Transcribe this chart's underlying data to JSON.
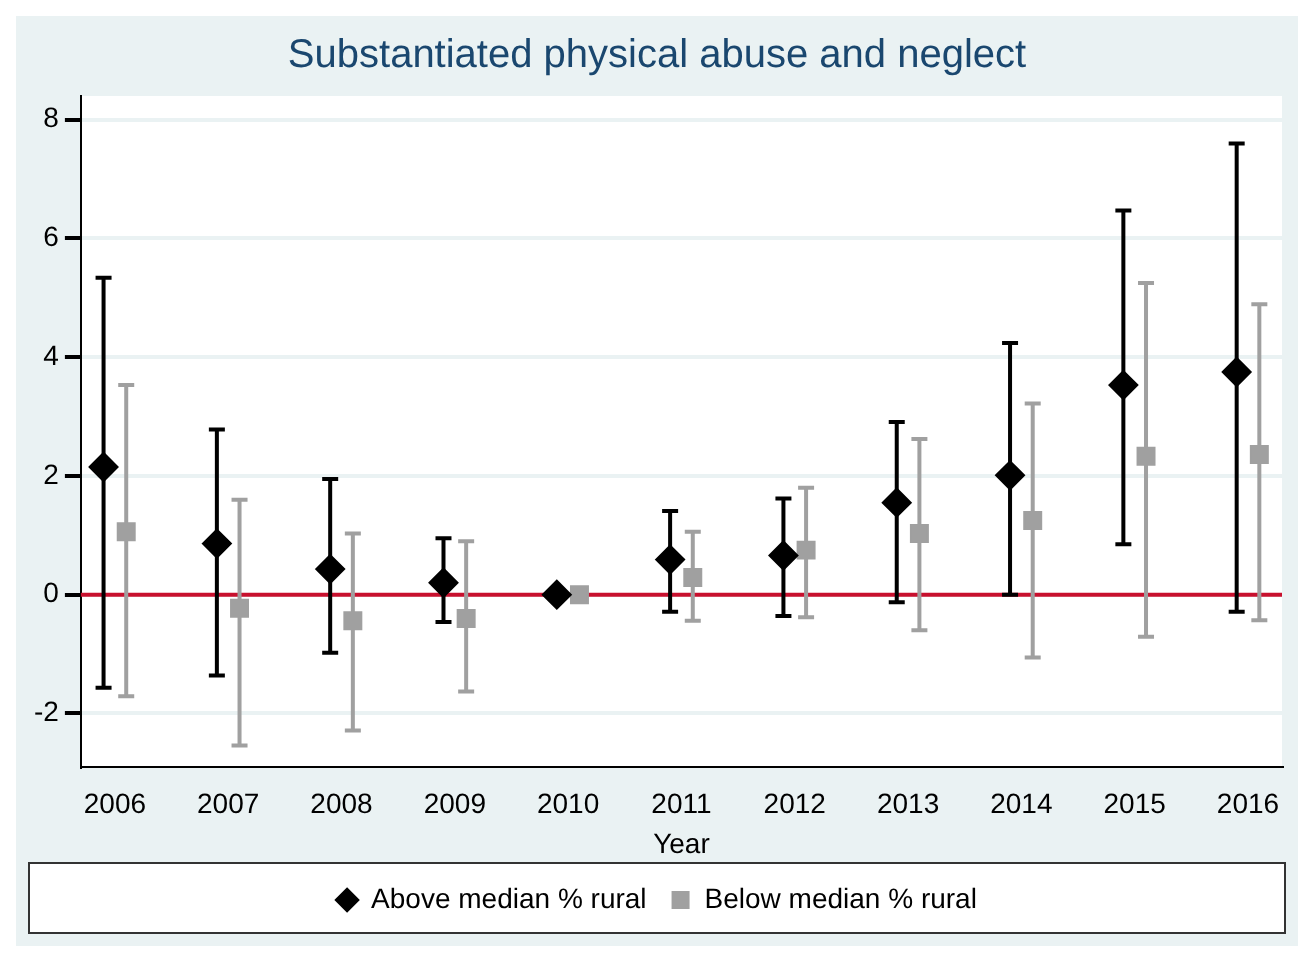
{
  "chart_data": {
    "type": "scatter",
    "title": "Substantiated physical abuse and neglect",
    "xlabel": "Year",
    "xlim": [
      2005.7,
      2016.3
    ],
    "xticks": [
      2006,
      2007,
      2008,
      2009,
      2010,
      2011,
      2012,
      2013,
      2014,
      2015,
      2016
    ],
    "ylim": [
      -2.9,
      8.4
    ],
    "yticks": [
      -2,
      0,
      2,
      4,
      6,
      8
    ],
    "grid": "y",
    "legend": "bottom",
    "ref_lines": [
      {
        "axis": "y",
        "value": 0,
        "color": "#c8102e"
      }
    ],
    "series": [
      {
        "name": "Above median % rural",
        "color": "#000000",
        "marker": "diamond",
        "x": [
          2005.9,
          2006.9,
          2007.9,
          2008.9,
          2009.9,
          2010.9,
          2011.9,
          2012.9,
          2013.9,
          2014.9,
          2015.9
        ],
        "values": [
          2.15,
          0.86,
          0.43,
          0.2,
          0,
          0.59,
          0.66,
          1.55,
          2.01,
          3.53,
          3.75
        ],
        "errors": [
          [
            -1.57,
            5.34
          ],
          [
            -1.36,
            2.78
          ],
          [
            -0.98,
            1.95
          ],
          [
            -0.46,
            0.95
          ],
          null,
          [
            -0.29,
            1.41
          ],
          [
            -0.36,
            1.62
          ],
          [
            -0.13,
            2.91
          ],
          [
            0,
            4.24
          ],
          [
            0.85,
            6.47
          ],
          [
            -0.29,
            7.6
          ]
        ]
      },
      {
        "name": "Below median % rural",
        "color": "#a0a0a0",
        "marker": "square",
        "x": [
          2006.1,
          2007.1,
          2008.1,
          2009.1,
          2010.1,
          2011.1,
          2012.1,
          2013.1,
          2014.1,
          2015.1,
          2016.1
        ],
        "values": [
          1.06,
          -0.23,
          -0.44,
          -0.4,
          0,
          0.29,
          0.75,
          1.03,
          1.25,
          2.33,
          2.36
        ],
        "errors": [
          [
            -1.71,
            3.53
          ],
          [
            -2.54,
            1.6
          ],
          [
            -2.29,
            1.03
          ],
          [
            -1.63,
            0.9
          ],
          null,
          [
            -0.44,
            1.06
          ],
          [
            -0.38,
            1.8
          ],
          [
            -0.6,
            2.62
          ],
          [
            -1.06,
            3.22
          ],
          [
            -0.71,
            5.25
          ],
          [
            -0.43,
            4.89
          ]
        ]
      }
    ]
  }
}
